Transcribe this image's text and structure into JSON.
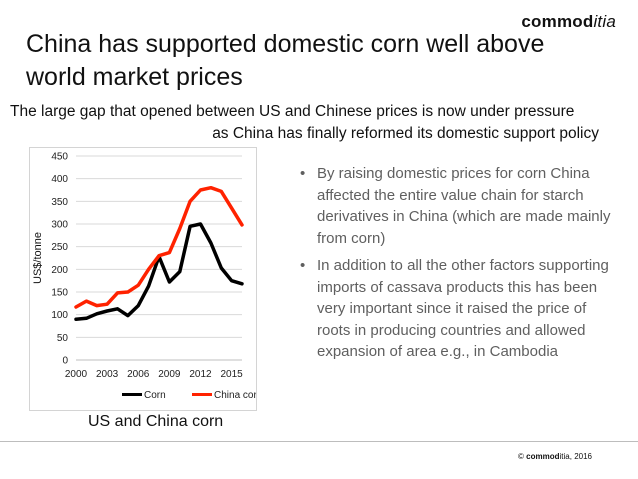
{
  "logo": {
    "part1": "commod",
    "part2": "itia"
  },
  "title": "China has supported domestic corn well above world market prices",
  "subtitle": {
    "line1": "The large gap that opened between US and Chinese prices is now under pressure",
    "line2": "as China has finally reformed its domestic support policy"
  },
  "chart_caption": "US and China corn",
  "bullets": [
    "By raising domestic prices for corn China affected the entire value chain for starch derivatives in China (which are made mainly from corn)",
    "In addition to all the other factors supporting imports of cassava products this has been very important since it raised the price of roots in producing countries and allowed expansion of area e.g., in Cambodia"
  ],
  "bullet_glyph": "•",
  "footer": {
    "copyright": "©",
    "brand1": "commod",
    "brand2": "itia",
    "year": ", 2016"
  },
  "colors": {
    "corn": "#000000",
    "china_corn": "#ff2200",
    "grid": "#d9d9d9",
    "bullet_text": "#5f5f5f"
  },
  "chart_data": {
    "type": "line",
    "title": "",
    "xlabel": "",
    "ylabel": "US$/tonne",
    "ylim": [
      0,
      450
    ],
    "yticks": [
      0,
      50,
      100,
      150,
      200,
      250,
      300,
      350,
      400,
      450
    ],
    "xlim": [
      2000,
      2016
    ],
    "xticks": [
      2000,
      2003,
      2006,
      2009,
      2012,
      2015
    ],
    "grid": true,
    "legend": "bottom",
    "x": [
      2000,
      2001,
      2002,
      2003,
      2004,
      2005,
      2006,
      2007,
      2008,
      2009,
      2010,
      2011,
      2012,
      2013,
      2014,
      2015,
      2016
    ],
    "series": [
      {
        "name": "Corn",
        "color": "#000000",
        "values": [
          90,
          92,
          102,
          108,
          113,
          98,
          120,
          163,
          228,
          172,
          195,
          295,
          300,
          258,
          203,
          175,
          168
        ]
      },
      {
        "name": "China corn",
        "color": "#ff2200",
        "values": [
          117,
          130,
          120,
          123,
          148,
          150,
          165,
          200,
          230,
          237,
          290,
          350,
          375,
          380,
          372,
          335,
          298
        ]
      }
    ]
  }
}
